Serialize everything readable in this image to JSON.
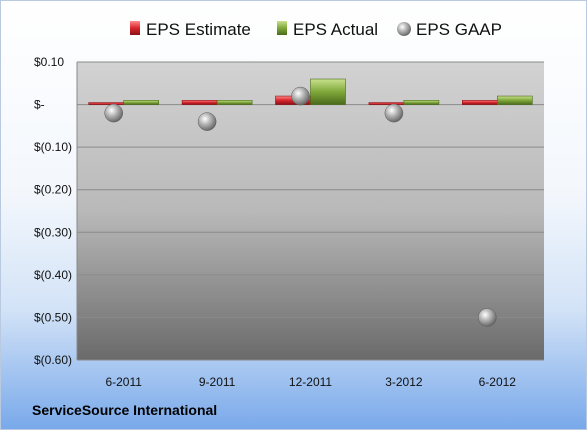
{
  "company": "ServiceSource International",
  "colors": {
    "estimate": "#d8262d",
    "actual": "#7fa83a",
    "gaap": "#a9a9a9"
  },
  "chart_data": {
    "type": "bar",
    "title": "",
    "xlabel": "",
    "ylabel": "",
    "categories": [
      "6-2011",
      "9-2011",
      "12-2011",
      "3-2012",
      "6-2012"
    ],
    "series": [
      {
        "name": "EPS Estimate",
        "kind": "bar",
        "values": [
          0.0,
          0.01,
          0.02,
          0.0,
          0.01
        ]
      },
      {
        "name": "EPS Actual",
        "kind": "bar",
        "values": [
          0.01,
          0.01,
          0.06,
          0.01,
          0.02
        ]
      },
      {
        "name": "EPS GAAP",
        "kind": "marker",
        "values": [
          -0.02,
          -0.04,
          0.02,
          -0.02,
          -0.5
        ]
      }
    ],
    "ylim": [
      -0.6,
      0.1
    ],
    "yticks": [
      {
        "value": 0.1,
        "label": "$0.10"
      },
      {
        "value": 0.0,
        "label": "$-"
      },
      {
        "value": -0.1,
        "label": "$(0.10)"
      },
      {
        "value": -0.2,
        "label": "$(0.20)"
      },
      {
        "value": -0.3,
        "label": "$(0.30)"
      },
      {
        "value": -0.4,
        "label": "$(0.40)"
      },
      {
        "value": -0.5,
        "label": "$(0.50)"
      },
      {
        "value": -0.6,
        "label": "$(0.60)"
      }
    ],
    "grid": true,
    "legend": "top"
  }
}
